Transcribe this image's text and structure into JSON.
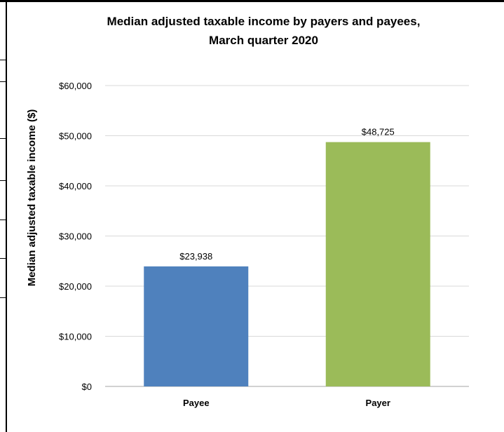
{
  "chart_data": {
    "type": "bar",
    "title_line1": "Median adjusted taxable income by payers and payees,",
    "title_line2": "March quarter 2020",
    "xlabel": "",
    "ylabel": "Median adjusted taxable income ($)",
    "categories": [
      "Payee",
      "Payer"
    ],
    "values": [
      23938,
      48725
    ],
    "data_labels": [
      "$23,938",
      "$48,725"
    ],
    "colors": [
      "#4f81bd",
      "#9bbb59"
    ],
    "ylim": [
      0,
      60000
    ],
    "yticks": [
      0,
      10000,
      20000,
      30000,
      40000,
      50000,
      60000
    ],
    "ytick_labels": [
      "$0",
      "$10,000",
      "$20,000",
      "$30,000",
      "$40,000",
      "$50,000",
      "$60,000"
    ],
    "grid": true,
    "legend": "none"
  }
}
